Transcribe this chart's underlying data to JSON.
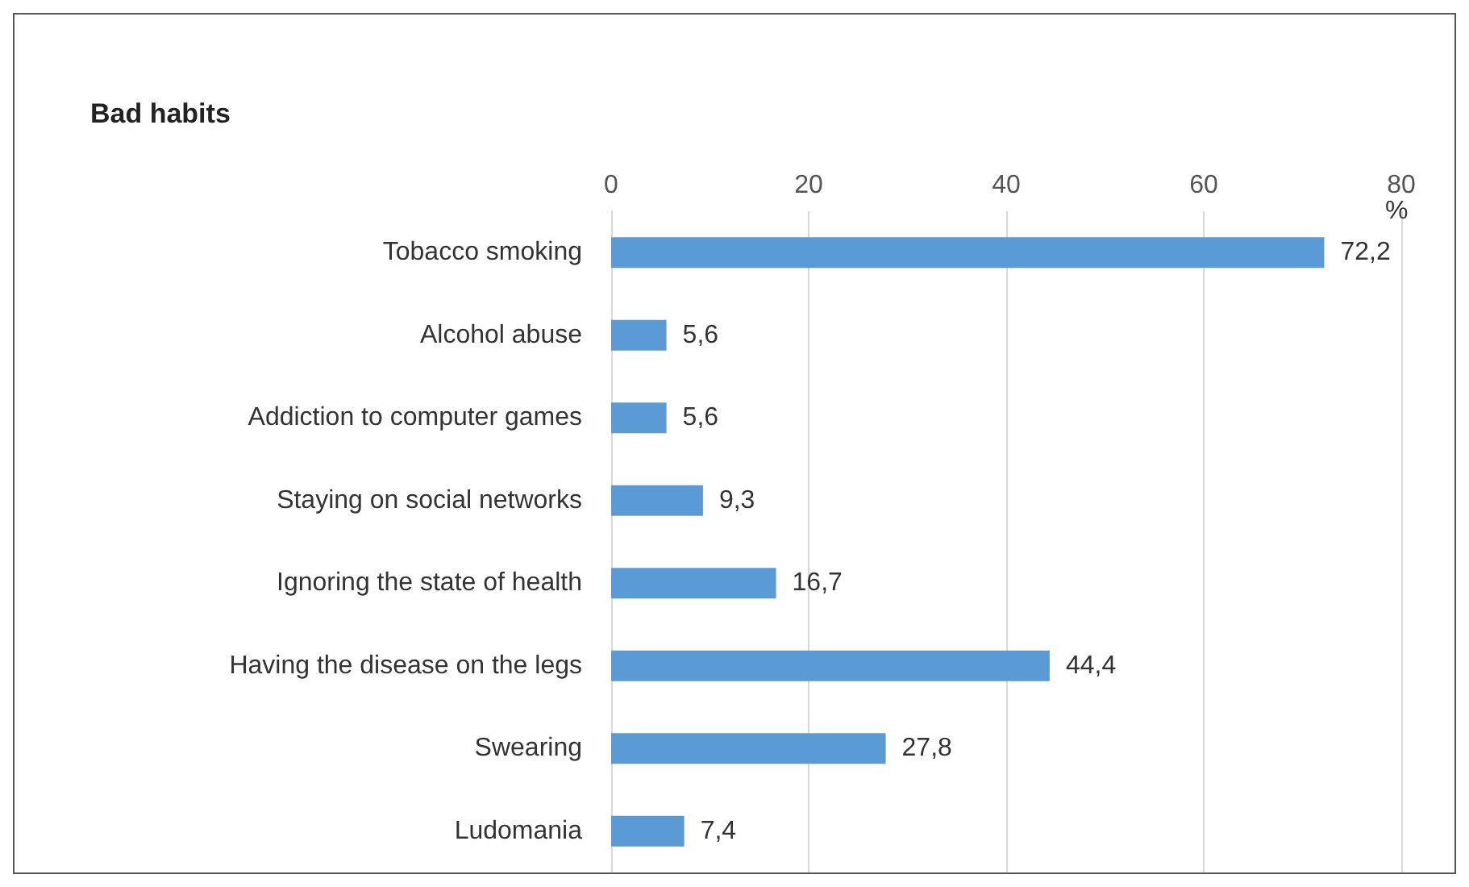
{
  "chart_data": {
    "type": "bar",
    "orientation": "horizontal",
    "title": "Bad habits",
    "xlabel": "%",
    "categories": [
      "Tobacco smoking",
      "Alcohol abuse",
      "Addiction to computer games",
      "Staying on social networks",
      "Ignoring the state of health",
      "Having the disease on the legs",
      "Swearing",
      "Ludomania"
    ],
    "values": [
      72.2,
      5.6,
      5.6,
      9.3,
      16.7,
      44.4,
      27.8,
      7.4
    ],
    "value_labels": [
      "72,2",
      "5,6",
      "5,6",
      "9,3",
      "16,7",
      "44,4",
      "27,8",
      "7,4"
    ],
    "color": "#5b9bd5",
    "xlim": [
      0,
      80
    ],
    "xticks": [
      0,
      20,
      40,
      60,
      80
    ],
    "grid": "x"
  }
}
